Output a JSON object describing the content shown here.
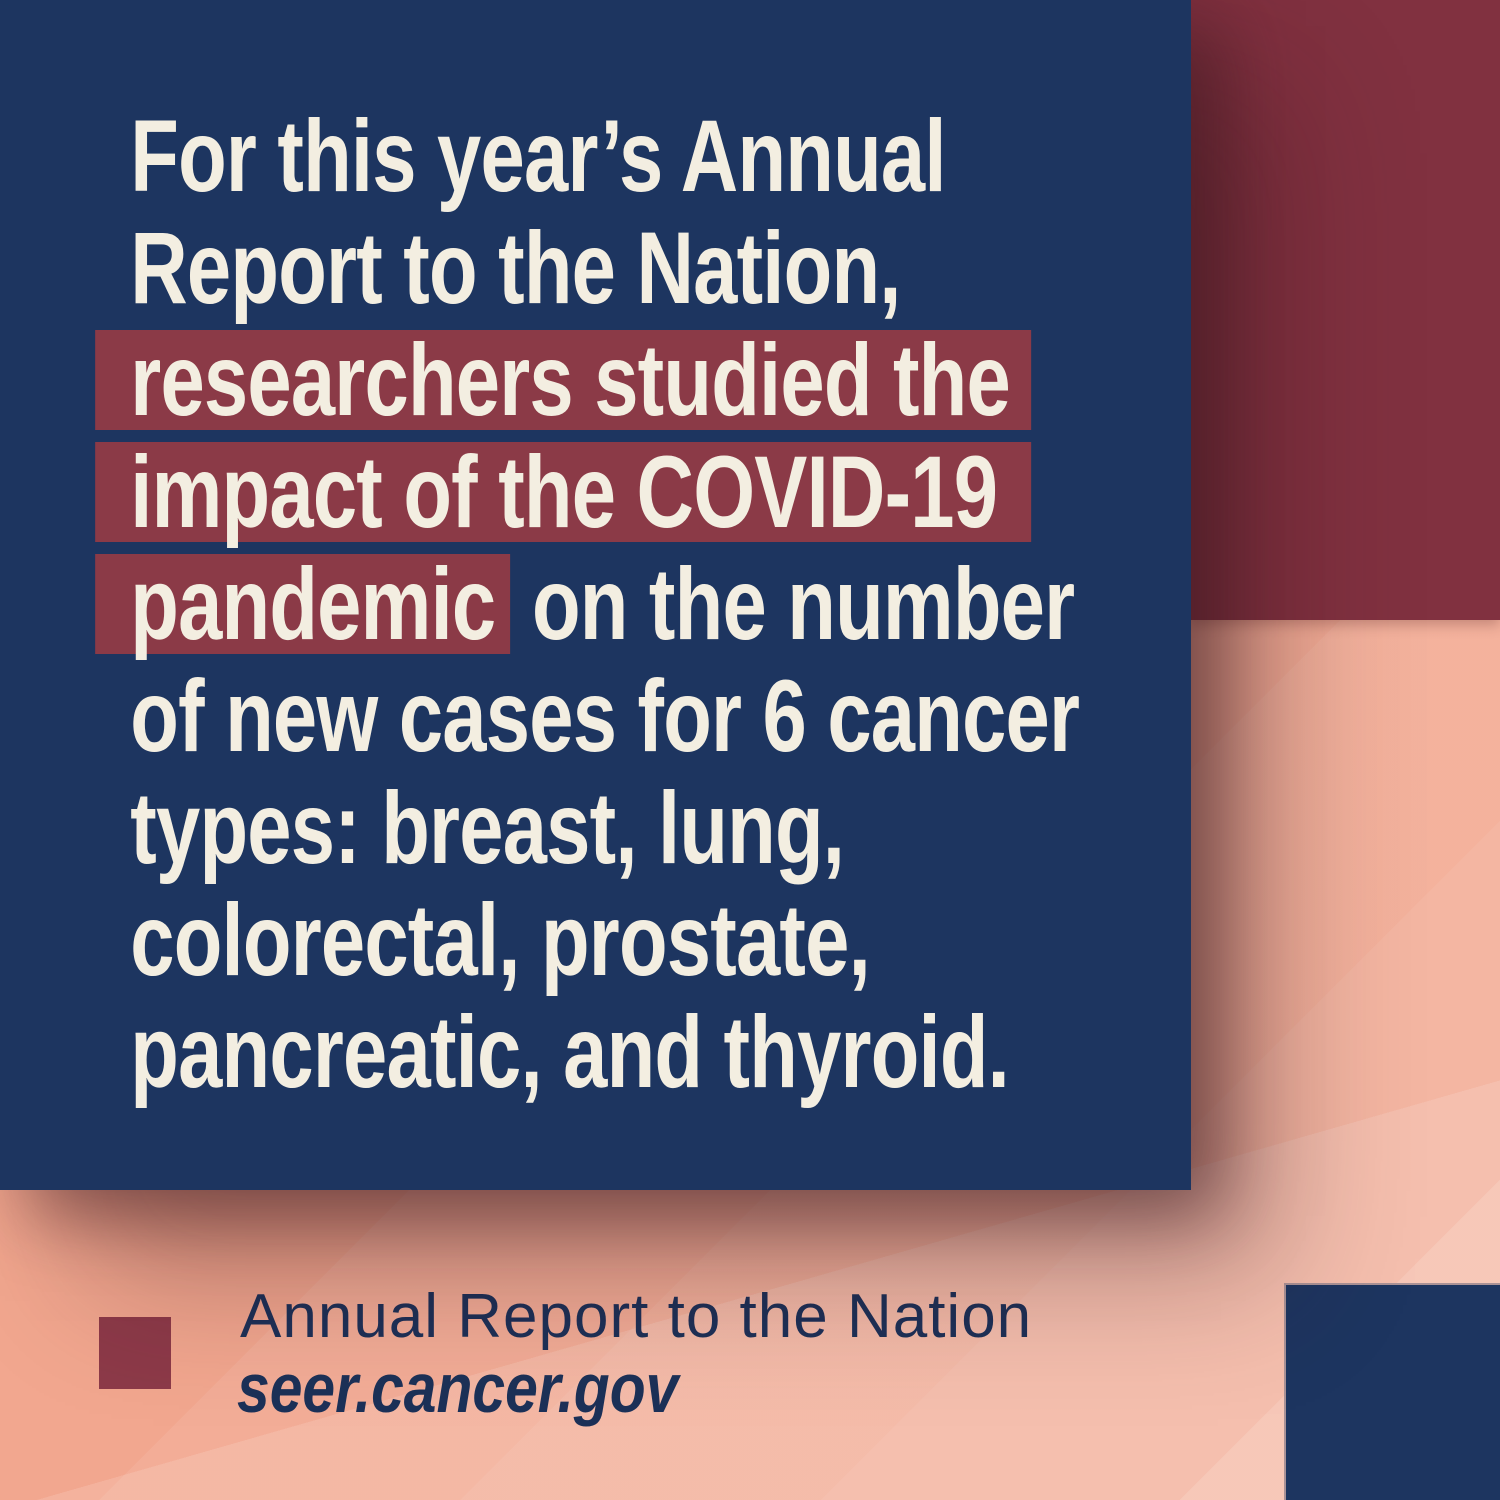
{
  "panel": {
    "lines": [
      {
        "text": "For this year’s Annual",
        "highlighted": false
      },
      {
        "text": "Report to the Nation,",
        "highlighted": false
      },
      {
        "text": "researchers studied the",
        "highlighted": true
      },
      {
        "text": "impact of the COVID-19",
        "highlighted": true
      },
      {
        "highlighted_part": "pandemic",
        "rest": "on the number",
        "highlighted": "partial"
      },
      {
        "text": "of new cases for 6 cancer",
        "highlighted": false
      },
      {
        "text": "types: breast, lung,",
        "highlighted": false
      },
      {
        "text": "colorectal, prostate,",
        "highlighted": false
      },
      {
        "text": "pancreatic, and thyroid.",
        "highlighted": false
      }
    ]
  },
  "caption": {
    "title": "Annual Report to the Nation",
    "url": "seer.cancer.gov"
  },
  "colors": {
    "navy": "#1d3560",
    "maroon_highlight": "#8b3a47",
    "maroon_block": "#813140",
    "maroon_bullet": "#8d3a49",
    "cream_text": "#f3eee1",
    "peach_background": "#f2a78f",
    "caption_text": "#1c3158"
  }
}
